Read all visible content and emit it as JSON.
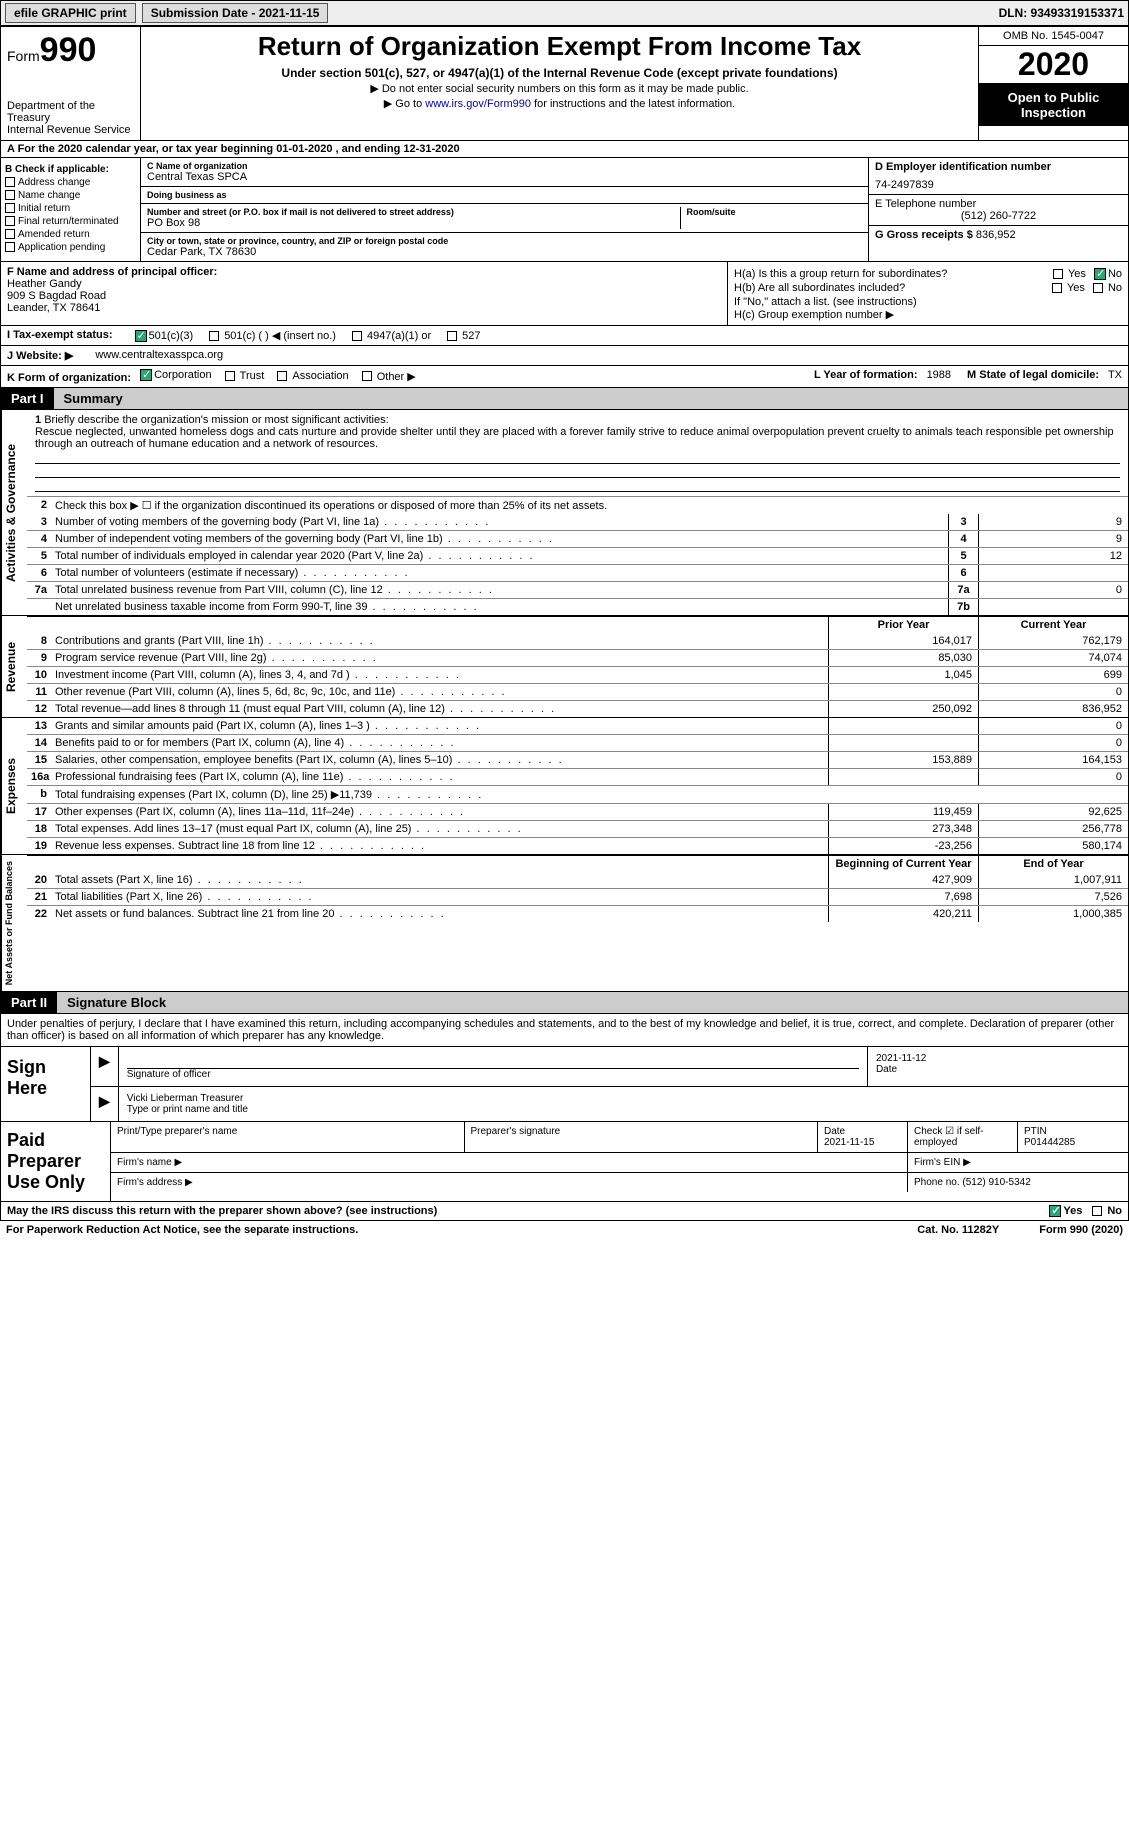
{
  "topbar": {
    "efile": "efile GRAPHIC print",
    "submission_label": "Submission Date - 2021-11-15",
    "dln_label": "DLN: 93493319153371"
  },
  "header": {
    "form_word": "Form",
    "form_num": "990",
    "dept": "Department of the Treasury\nInternal Revenue Service",
    "title": "Return of Organization Exempt From Income Tax",
    "sub": "Under section 501(c), 527, or 4947(a)(1) of the Internal Revenue Code (except private foundations)",
    "note1": "▶ Do not enter social security numbers on this form as it may be made public.",
    "note2_pre": "▶ Go to ",
    "note2_link": "www.irs.gov/Form990",
    "note2_post": " for instructions and the latest information.",
    "omb": "OMB No. 1545-0047",
    "year": "2020",
    "open": "Open to Public Inspection"
  },
  "rowA": "A For the 2020 calendar year, or tax year beginning 01-01-2020   , and ending 12-31-2020",
  "B": {
    "title": "B Check if applicable:",
    "items": [
      "Address change",
      "Name change",
      "Initial return",
      "Final return/terminated",
      "Amended return",
      "Application pending"
    ]
  },
  "C": {
    "name_lab": "C Name of organization",
    "name": "Central Texas SPCA",
    "dba_lab": "Doing business as",
    "dba": "",
    "street_lab": "Number and street (or P.O. box if mail is not delivered to street address)",
    "room_lab": "Room/suite",
    "street": "PO Box 98",
    "city_lab": "City or town, state or province, country, and ZIP or foreign postal code",
    "city": "Cedar Park, TX  78630"
  },
  "D": {
    "lab": "D Employer identification number",
    "val": "74-2497839"
  },
  "E": {
    "lab": "E Telephone number",
    "val": "(512) 260-7722"
  },
  "G": {
    "lab": "G Gross receipts $",
    "val": "836,952"
  },
  "F": {
    "lab": "F  Name and address of principal officer:",
    "name": "Heather Gandy",
    "addr1": "909 S Bagdad Road",
    "addr2": "Leander, TX  78641"
  },
  "H": {
    "a": "H(a)  Is this a group return for subordinates?",
    "b": "H(b)  Are all subordinates included?",
    "note": "If \"No,\" attach a list. (see instructions)",
    "c": "H(c)  Group exemption number ▶",
    "yes": "Yes",
    "no": "No"
  },
  "I": {
    "lab": "I  Tax-exempt status:",
    "opts": [
      "501(c)(3)",
      "501(c) (  ) ◀ (insert no.)",
      "4947(a)(1) or",
      "527"
    ]
  },
  "J": {
    "lab": "J  Website: ▶",
    "val": "www.centraltexasspca.org"
  },
  "K": {
    "lab": "K Form of organization:",
    "opts": [
      "Corporation",
      "Trust",
      "Association",
      "Other ▶"
    ]
  },
  "L": {
    "lab": "L Year of formation:",
    "val": "1988"
  },
  "M": {
    "lab": "M State of legal domicile:",
    "val": "TX"
  },
  "part1": {
    "hdr": "Part I",
    "title": "Summary"
  },
  "mission": {
    "num": "1",
    "lab": "Briefly describe the organization's mission or most significant activities:",
    "text": "Rescue neglected, unwanted homeless dogs and cats nurture and provide shelter until they are placed with a forever family strive to reduce animal overpopulation prevent cruelty to animals teach responsible pet ownership through an outreach of humane education and a network of resources."
  },
  "gov": {
    "tab": "Activities & Governance",
    "l2": "Check this box ▶ ☐ if the organization discontinued its operations or disposed of more than 25% of its net assets.",
    "lines": [
      {
        "n": "3",
        "t": "Number of voting members of the governing body (Part VI, line 1a)",
        "b": "3",
        "v": "9"
      },
      {
        "n": "4",
        "t": "Number of independent voting members of the governing body (Part VI, line 1b)",
        "b": "4",
        "v": "9"
      },
      {
        "n": "5",
        "t": "Total number of individuals employed in calendar year 2020 (Part V, line 2a)",
        "b": "5",
        "v": "12"
      },
      {
        "n": "6",
        "t": "Total number of volunteers (estimate if necessary)",
        "b": "6",
        "v": ""
      },
      {
        "n": "7a",
        "t": "Total unrelated business revenue from Part VIII, column (C), line 12",
        "b": "7a",
        "v": "0"
      },
      {
        "n": "",
        "t": "Net unrelated business taxable income from Form 990-T, line 39",
        "b": "7b",
        "v": ""
      }
    ]
  },
  "rev": {
    "tab": "Revenue",
    "h1": "Prior Year",
    "h2": "Current Year",
    "lines": [
      {
        "n": "8",
        "t": "Contributions and grants (Part VIII, line 1h)",
        "p": "164,017",
        "c": "762,179"
      },
      {
        "n": "9",
        "t": "Program service revenue (Part VIII, line 2g)",
        "p": "85,030",
        "c": "74,074"
      },
      {
        "n": "10",
        "t": "Investment income (Part VIII, column (A), lines 3, 4, and 7d )",
        "p": "1,045",
        "c": "699"
      },
      {
        "n": "11",
        "t": "Other revenue (Part VIII, column (A), lines 5, 6d, 8c, 9c, 10c, and 11e)",
        "p": "",
        "c": "0"
      },
      {
        "n": "12",
        "t": "Total revenue—add lines 8 through 11 (must equal Part VIII, column (A), line 12)",
        "p": "250,092",
        "c": "836,952"
      }
    ]
  },
  "exp": {
    "tab": "Expenses",
    "lines": [
      {
        "n": "13",
        "t": "Grants and similar amounts paid (Part IX, column (A), lines 1–3 )",
        "p": "",
        "c": "0"
      },
      {
        "n": "14",
        "t": "Benefits paid to or for members (Part IX, column (A), line 4)",
        "p": "",
        "c": "0"
      },
      {
        "n": "15",
        "t": "Salaries, other compensation, employee benefits (Part IX, column (A), lines 5–10)",
        "p": "153,889",
        "c": "164,153"
      },
      {
        "n": "16a",
        "t": "Professional fundraising fees (Part IX, column (A), line 11e)",
        "p": "",
        "c": "0"
      },
      {
        "n": "b",
        "t": "Total fundraising expenses (Part IX, column (D), line 25) ▶11,739",
        "p": "—",
        "c": "—"
      },
      {
        "n": "17",
        "t": "Other expenses (Part IX, column (A), lines 11a–11d, 11f–24e)",
        "p": "119,459",
        "c": "92,625"
      },
      {
        "n": "18",
        "t": "Total expenses. Add lines 13–17 (must equal Part IX, column (A), line 25)",
        "p": "273,348",
        "c": "256,778"
      },
      {
        "n": "19",
        "t": "Revenue less expenses. Subtract line 18 from line 12",
        "p": "-23,256",
        "c": "580,174"
      }
    ]
  },
  "net": {
    "tab": "Net Assets or Fund Balances",
    "h1": "Beginning of Current Year",
    "h2": "End of Year",
    "lines": [
      {
        "n": "20",
        "t": "Total assets (Part X, line 16)",
        "p": "427,909",
        "c": "1,007,911"
      },
      {
        "n": "21",
        "t": "Total liabilities (Part X, line 26)",
        "p": "7,698",
        "c": "7,526"
      },
      {
        "n": "22",
        "t": "Net assets or fund balances. Subtract line 21 from line 20",
        "p": "420,211",
        "c": "1,000,385"
      }
    ]
  },
  "part2": {
    "hdr": "Part II",
    "title": "Signature Block"
  },
  "sig": {
    "decl": "Under penalties of perjury, I declare that I have examined this return, including accompanying schedules and statements, and to the best of my knowledge and belief, it is true, correct, and complete. Declaration of preparer (other than officer) is based on all information of which preparer has any knowledge.",
    "sign_here": "Sign Here",
    "sig_officer": "Signature of officer",
    "date": "2021-11-12",
    "date_lab": "Date",
    "name": "Vicki Lieberman  Treasurer",
    "name_lab": "Type or print name and title"
  },
  "prep": {
    "title": "Paid Preparer Use Only",
    "r1": {
      "a": "Print/Type preparer's name",
      "b": "Preparer's signature",
      "c": "Date",
      "cv": "2021-11-15",
      "d": "Check ☑ if self-employed",
      "e": "PTIN",
      "ev": "P01444285"
    },
    "r2": {
      "a": "Firm's name  ▶",
      "b": "Firm's EIN ▶"
    },
    "r3": {
      "a": "Firm's address ▶",
      "b": "Phone no. (512) 910-5342"
    }
  },
  "footer": {
    "q": "May the IRS discuss this return with the preparer shown above? (see instructions)",
    "yes": "Yes",
    "no": "No",
    "pra": "For Paperwork Reduction Act Notice, see the separate instructions.",
    "cat": "Cat. No. 11282Y",
    "form": "Form 990 (2020)"
  }
}
